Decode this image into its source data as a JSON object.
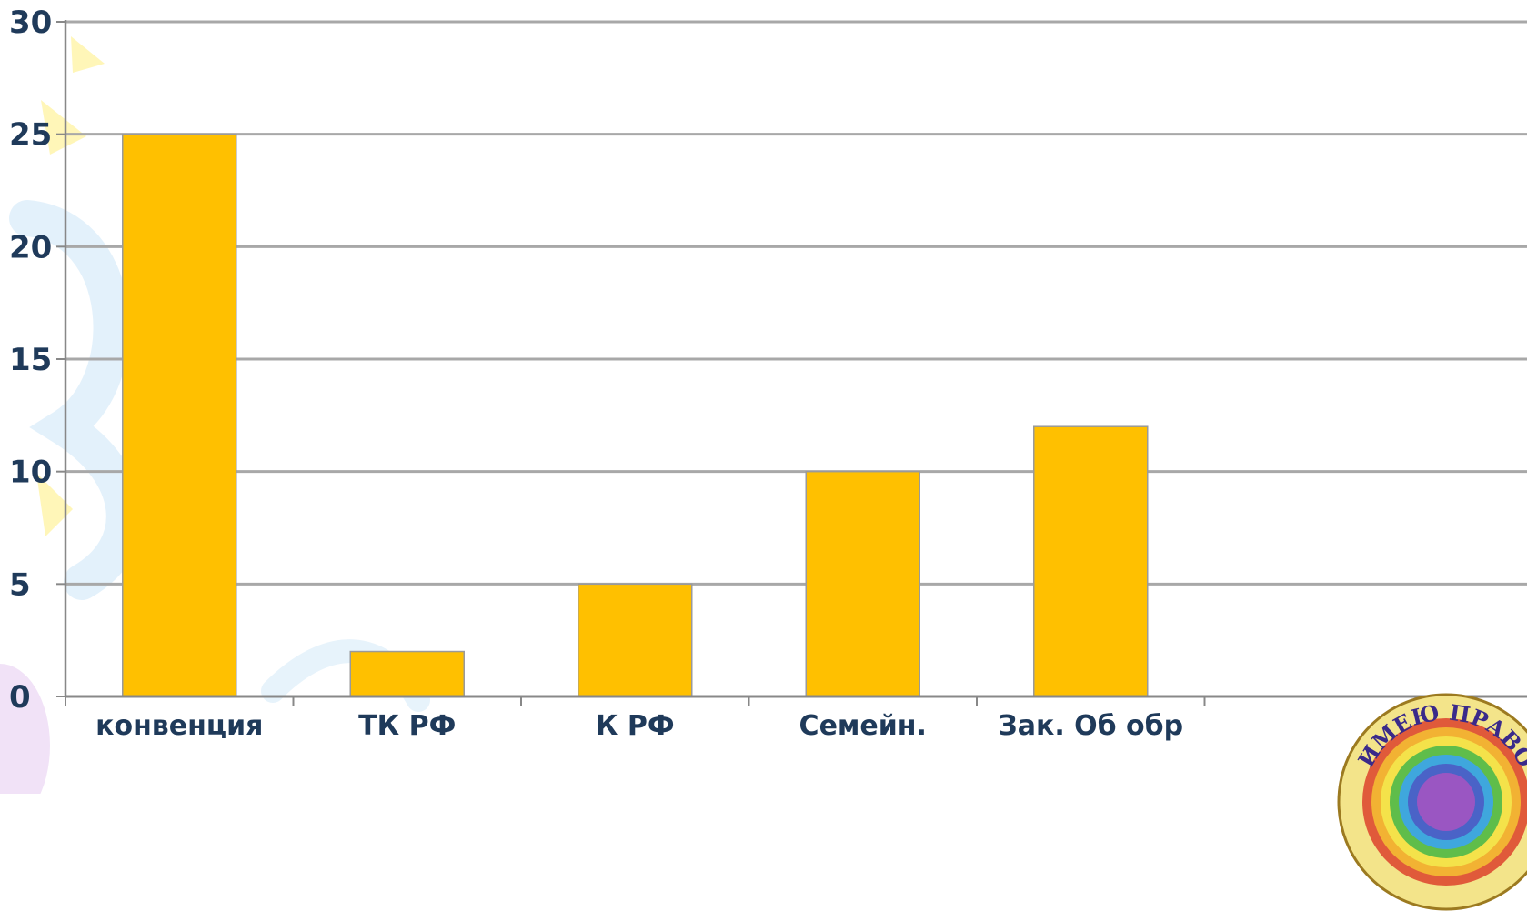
{
  "chart_data": {
    "type": "bar",
    "title": "",
    "xlabel": "",
    "ylabel": "",
    "categories": [
      "конвенция",
      "ТК РФ",
      "К РФ",
      "Семейн.",
      "Зак. Об обр"
    ],
    "values": [
      25,
      2,
      5,
      10,
      12
    ],
    "ylim": [
      0,
      30
    ],
    "yticks": [
      0,
      5,
      10,
      15,
      20,
      25,
      30
    ],
    "ytick_labels": [
      "0",
      "5",
      "10",
      "15",
      "20",
      "25",
      "30"
    ],
    "grid": true,
    "legend": "none"
  },
  "colors": {
    "bar": "#FFC000",
    "bar_border": "#9a9a9a",
    "grid": "#a8a8a8",
    "axis": "#888888",
    "label": "#1f3a5a"
  },
  "emblem": {
    "text": "ИМЕЮ ПРАВО",
    "icon": "rainbow-emblem-icon"
  }
}
